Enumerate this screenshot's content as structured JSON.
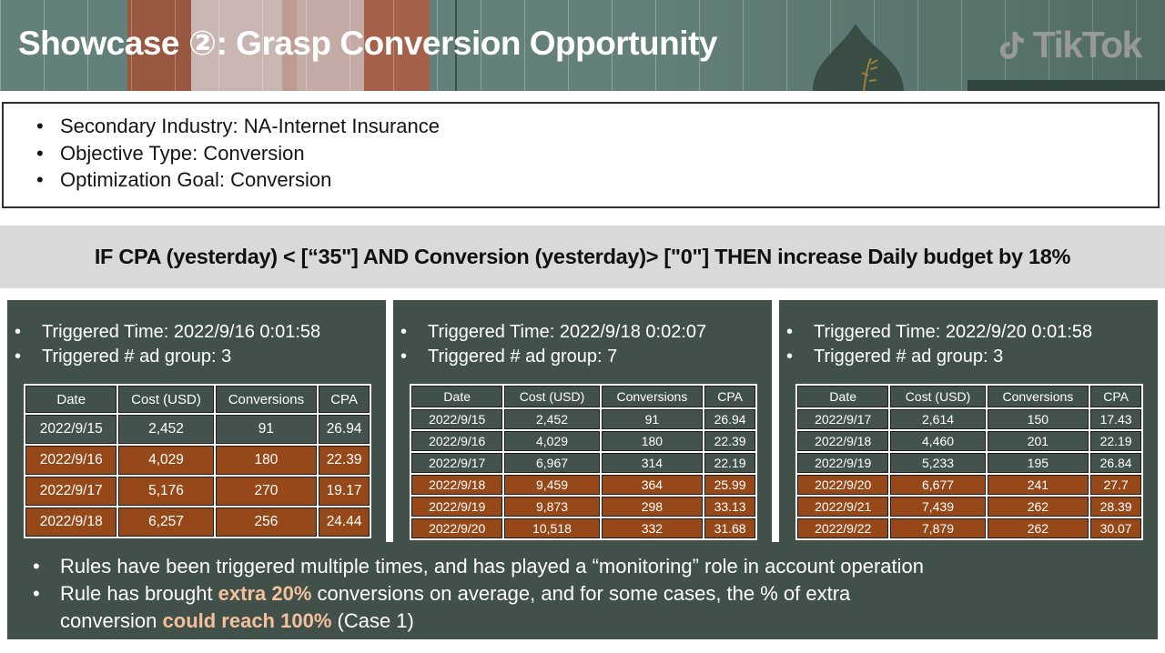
{
  "header": {
    "title": "Showcase ②: Grasp Conversion Opportunity",
    "logo_text": "TikTok"
  },
  "overview": {
    "bullets": [
      "Secondary Industry: NA-Internet Insurance",
      "Objective Type: Conversion",
      "Optimization Goal: Conversion"
    ]
  },
  "rule": {
    "text": "IF CPA (yesterday) < [“35\"] AND Conversion (yesterday)> [\"0\"] THEN increase Daily budget by 18%"
  },
  "panels": [
    {
      "triggered_time": "Triggered Time: 2022/9/16 0:01:58",
      "triggered_count": "Triggered # ad group: 3",
      "table": {
        "headers": [
          "Date",
          "Cost (USD)",
          "Conversions",
          "CPA"
        ],
        "rows": [
          {
            "cells": [
              "2022/9/15",
              "2,452",
              "91",
              "26.94"
            ],
            "highlight": false
          },
          {
            "cells": [
              "2022/9/16",
              "4,029",
              "180",
              "22.39"
            ],
            "highlight": true
          },
          {
            "cells": [
              "2022/9/17",
              "5,176",
              "270",
              "19.17"
            ],
            "highlight": true
          },
          {
            "cells": [
              "2022/9/18",
              "6,257",
              "256",
              "24.44"
            ],
            "highlight": true
          }
        ]
      }
    },
    {
      "triggered_time": "Triggered Time: 2022/9/18 0:02:07",
      "triggered_count": "Triggered # ad group: 7",
      "table": {
        "headers": [
          "Date",
          "Cost (USD)",
          "Conversions",
          "CPA"
        ],
        "rows": [
          {
            "cells": [
              "2022/9/15",
              "2,452",
              "91",
              "26.94"
            ],
            "highlight": false
          },
          {
            "cells": [
              "2022/9/16",
              "4,029",
              "180",
              "22.39"
            ],
            "highlight": false
          },
          {
            "cells": [
              "2022/9/17",
              "6,967",
              "314",
              "22.19"
            ],
            "highlight": false
          },
          {
            "cells": [
              "2022/9/18",
              "9,459",
              "364",
              "25.99"
            ],
            "highlight": true
          },
          {
            "cells": [
              "2022/9/19",
              "9,873",
              "298",
              "33.13"
            ],
            "highlight": true
          },
          {
            "cells": [
              "2022/9/20",
              "10,518",
              "332",
              "31.68"
            ],
            "highlight": true
          }
        ]
      }
    },
    {
      "triggered_time": "Triggered Time: 2022/9/20 0:01:58",
      "triggered_count": "Triggered # ad group: 3",
      "table": {
        "headers": [
          "Date",
          "Cost (USD)",
          "Conversions",
          "CPA"
        ],
        "rows": [
          {
            "cells": [
              "2022/9/17",
              "2,614",
              "150",
              "17.43"
            ],
            "highlight": false
          },
          {
            "cells": [
              "2022/9/18",
              "4,460",
              "201",
              "22.19"
            ],
            "highlight": false
          },
          {
            "cells": [
              "2022/9/19",
              "5,233",
              "195",
              "26.84"
            ],
            "highlight": false
          },
          {
            "cells": [
              "2022/9/20",
              "6,677",
              "241",
              "27.7"
            ],
            "highlight": true
          },
          {
            "cells": [
              "2022/9/21",
              "7,439",
              "262",
              "28.39"
            ],
            "highlight": true
          },
          {
            "cells": [
              "2022/9/22",
              "7,879",
              "262",
              "30.07"
            ],
            "highlight": true
          }
        ]
      }
    }
  ],
  "summary": {
    "bullet1": "Rules have been triggered multiple times, and has played a “monitoring” role in account operation",
    "bullet2": {
      "pre": "Rule has brought ",
      "hl1": "extra 20%",
      "mid": " conversions on average, and for some cases, the % of extra\nconversion ",
      "hl2": "could reach 100%",
      "post": " (Case 1)"
    }
  },
  "bullet_glyph": "•",
  "colors": {
    "panel_dark": "#42504a",
    "row_rust": "#964818",
    "highlight_peach": "#f5c19c",
    "rule_bar_gray": "#d9d9d9",
    "logo_gray": "#98999b"
  }
}
